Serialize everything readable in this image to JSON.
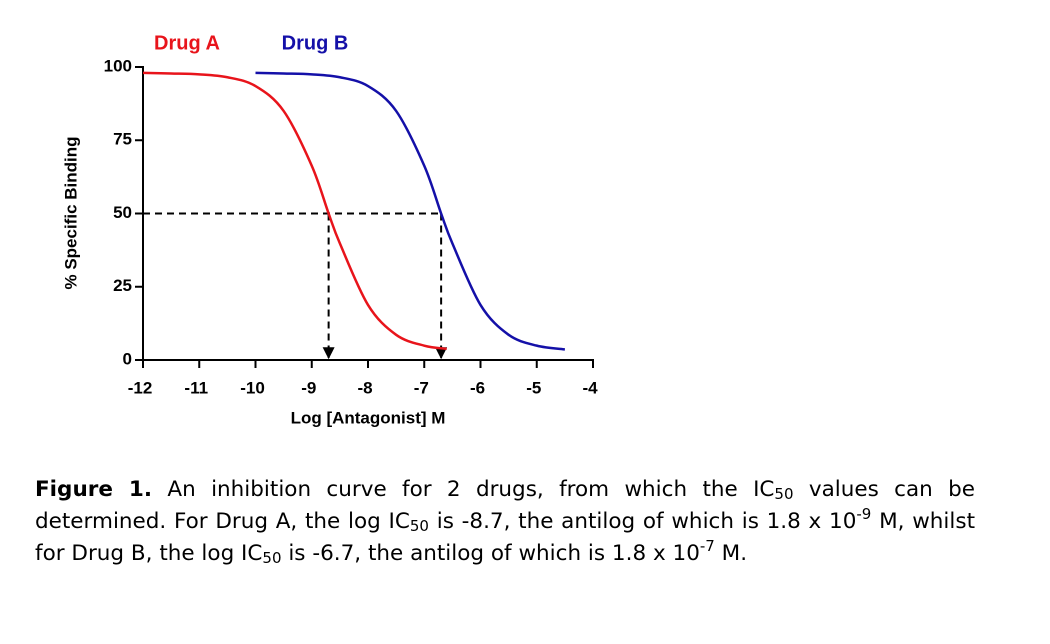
{
  "chart_data": {
    "type": "line",
    "xlabel": "Log [Antagonist] M",
    "ylabel": "% Specific Binding",
    "xlim": [
      -12,
      -4
    ],
    "xticks": [
      -12,
      -11,
      -10,
      -9,
      -8,
      -7,
      -6,
      -5,
      -4
    ],
    "ylim": [
      0,
      100
    ],
    "yticks": [
      0,
      25,
      50,
      75,
      100
    ],
    "legend": "top",
    "series": [
      {
        "name": "Drug A",
        "color": "#e8141b",
        "x": [
          -12,
          -11.5,
          -11,
          -10.5,
          -10,
          -9.5,
          -9,
          -8.7,
          -8.5,
          -8,
          -7.5,
          -7,
          -6.6
        ],
        "values": [
          98.0,
          97.8,
          97.5,
          96.5,
          93.5,
          85.0,
          66.3,
          50,
          39.8,
          18.8,
          8.6,
          4.9,
          3.8
        ]
      },
      {
        "name": "Drug B",
        "color": "#1410a8",
        "x": [
          -10,
          -9.5,
          -9,
          -8.5,
          -8,
          -7.5,
          -7,
          -6.7,
          -6.5,
          -6,
          -5.5,
          -5,
          -4.5
        ],
        "values": [
          98.0,
          97.8,
          97.5,
          96.5,
          93.5,
          85.0,
          66.3,
          50,
          39.8,
          18.8,
          8.6,
          4.9,
          3.6
        ]
      }
    ],
    "reference_lines": [
      {
        "x": -8.7,
        "y": 50
      },
      {
        "x": -6.7,
        "y": 50
      }
    ]
  },
  "caption": {
    "segments": [
      {
        "text": "Figure 1.",
        "style": "bold"
      },
      {
        "text": " An inhibition curve for 2 drugs, from which the IC",
        "style": "normal"
      },
      {
        "text": "50",
        "style": "sub"
      },
      {
        "text": " values can be determined. For Drug A, the log IC",
        "style": "normal"
      },
      {
        "text": "50",
        "style": "sub"
      },
      {
        "text": " is -8.7, the antilog of which is 1.8 x 10",
        "style": "normal"
      },
      {
        "text": "-9",
        "style": "sup"
      },
      {
        "text": " M, whilst for Drug B, the log IC",
        "style": "normal"
      },
      {
        "text": "50",
        "style": "sub"
      },
      {
        "text": " is -6.7, the antilog of which is 1.8 x 10",
        "style": "normal"
      },
      {
        "text": "-7",
        "style": "sup"
      },
      {
        "text": " M.",
        "style": "normal"
      }
    ]
  }
}
